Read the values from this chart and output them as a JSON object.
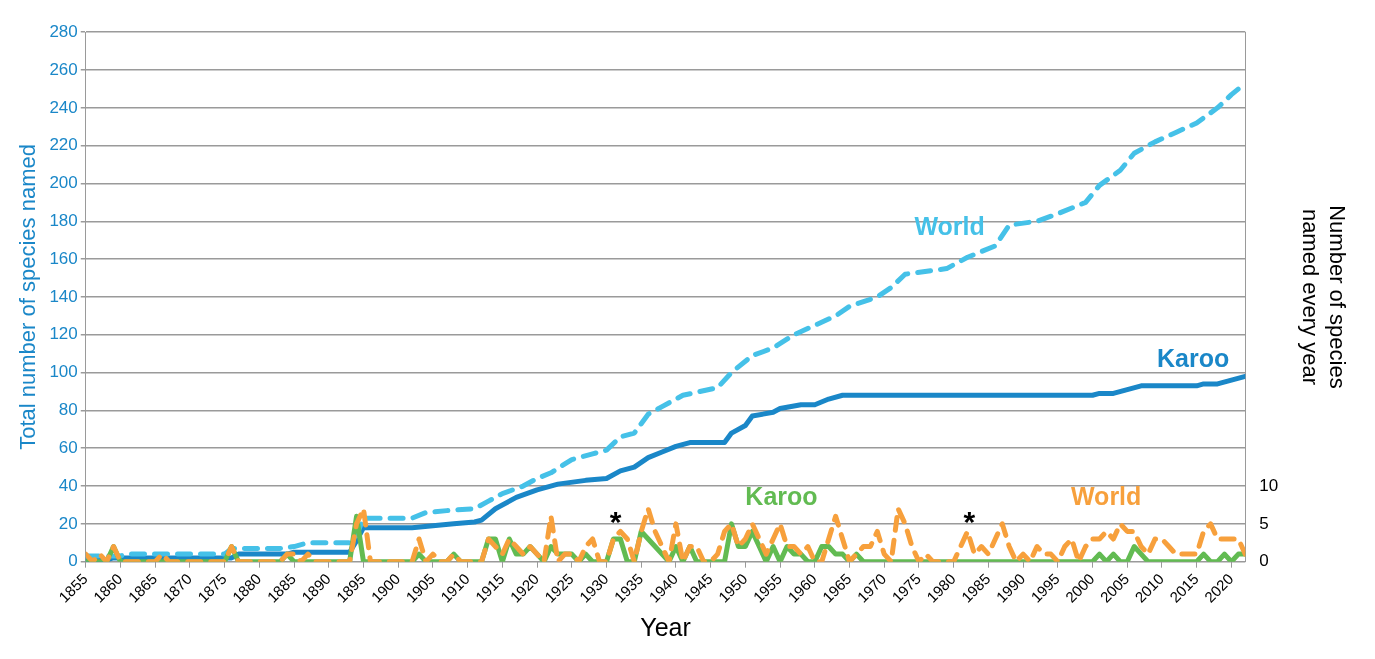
{
  "chart_data": {
    "type": "line",
    "xlabel": "Year",
    "ylabel": "Total number of species named",
    "y2label": "Number of species named every year",
    "xlim": [
      1855,
      2022
    ],
    "xticks": [
      1855,
      1860,
      1865,
      1870,
      1875,
      1880,
      1885,
      1890,
      1895,
      1900,
      1905,
      1910,
      1915,
      1920,
      1925,
      1930,
      1935,
      1940,
      1945,
      1950,
      1955,
      1960,
      1965,
      1970,
      1975,
      1980,
      1985,
      1990,
      1995,
      2000,
      2005,
      2010,
      2015,
      2020
    ],
    "ylim": [
      0,
      280
    ],
    "yticks": [
      0,
      20,
      40,
      60,
      80,
      100,
      120,
      140,
      160,
      180,
      200,
      220,
      240,
      260,
      280
    ],
    "y2lim": [
      0,
      70
    ],
    "y2ticks": [
      0,
      5,
      10
    ],
    "grid": "y",
    "marker": "none",
    "annotations": [
      "*",
      "*"
    ],
    "series": [
      {
        "name": "Karoo",
        "color": "#1a87c8",
        "line_style": "solid",
        "x": [
          1855,
          1858,
          1859,
          1876,
          1877,
          1884,
          1885,
          1893,
          1894,
          1895,
          1902,
          1905,
          1908,
          1911,
          1912,
          1914,
          1917,
          1920,
          1923,
          1927,
          1930,
          1932,
          1934,
          1936,
          1938,
          1940,
          1942,
          1947,
          1948,
          1950,
          1951,
          1954,
          1955,
          1958,
          1960,
          1962,
          1964,
          2000,
          2001,
          2003,
          2005,
          2007,
          2015,
          2016,
          2018,
          2020,
          2022
        ],
        "values": [
          1,
          1,
          2,
          2,
          4,
          4,
          5,
          5,
          11,
          18,
          18,
          19,
          20,
          21,
          22,
          28,
          34,
          38,
          41,
          43,
          44,
          48,
          50,
          55,
          58,
          61,
          63,
          63,
          68,
          72,
          77,
          79,
          81,
          83,
          83,
          86,
          88,
          88,
          89,
          89,
          91,
          93,
          93,
          94,
          94,
          96,
          98
        ]
      },
      {
        "name": "World",
        "color": "#45c1e8",
        "line_style": "dashed",
        "x": [
          1855,
          1860,
          1861,
          1875,
          1876,
          1883,
          1885,
          1887,
          1893,
          1894,
          1895,
          1902,
          1904,
          1907,
          1911,
          1913,
          1915,
          1918,
          1920,
          1922,
          1925,
          1928,
          1930,
          1932,
          1934,
          1936,
          1938,
          1941,
          1946,
          1948,
          1951,
          1954,
          1957,
          1960,
          1963,
          1965,
          1969,
          1971,
          1973,
          1979,
          1982,
          1986,
          1988,
          1992,
          1995,
          1999,
          2001,
          2004,
          2006,
          2009,
          2012,
          2015,
          2018,
          2020,
          2022
        ],
        "values": [
          3,
          3,
          4,
          4,
          7,
          7,
          8,
          10,
          10,
          14,
          23,
          23,
          26,
          27,
          28,
          32,
          36,
          40,
          44,
          47,
          54,
          57,
          59,
          66,
          68,
          78,
          82,
          88,
          92,
          100,
          109,
          113,
          120,
          125,
          130,
          135,
          140,
          145,
          152,
          155,
          161,
          167,
          178,
          180,
          184,
          190,
          199,
          207,
          216,
          222,
          227,
          232,
          240,
          247,
          253
        ]
      },
      {
        "name": "Karoo",
        "color": "#62bb52",
        "line_style": "solid",
        "axis": "y2",
        "x": [
          1855,
          1858,
          1859,
          1860,
          1875,
          1876,
          1877,
          1883,
          1884,
          1885,
          1893,
          1894,
          1895,
          1902,
          1903,
          1904,
          1907,
          1908,
          1909,
          1912,
          1913,
          1914,
          1915,
          1916,
          1917,
          1918,
          1919,
          1920,
          1921,
          1922,
          1923,
          1924,
          1925,
          1926,
          1927,
          1928,
          1930,
          1931,
          1932,
          1933,
          1934,
          1935,
          1936,
          1937,
          1938,
          1939,
          1940,
          1941,
          1942,
          1943,
          1947,
          1948,
          1949,
          1950,
          1951,
          1952,
          1953,
          1954,
          1955,
          1956,
          1957,
          1958,
          1959,
          1960,
          1961,
          1962,
          1963,
          1964,
          1965,
          1966,
          1967,
          2000,
          2001,
          2002,
          2003,
          2004,
          2005,
          2006,
          2007,
          2008,
          2015,
          2016,
          2017,
          2018,
          2019,
          2020,
          2021,
          2022
        ],
        "values": [
          0,
          0,
          2,
          0,
          0,
          2,
          0,
          0,
          1,
          0,
          0,
          6,
          0,
          0,
          1,
          0,
          0,
          1,
          0,
          0,
          3,
          3,
          0,
          3,
          1,
          1,
          2,
          1,
          0,
          2,
          1,
          1,
          1,
          0,
          1,
          0,
          0,
          3,
          3,
          0,
          0,
          4,
          3,
          2,
          1,
          0,
          2,
          0,
          2,
          0,
          0,
          5,
          2,
          2,
          4,
          2,
          0,
          2,
          0,
          2,
          1,
          1,
          0,
          0,
          2,
          2,
          1,
          1,
          0,
          1,
          0,
          0,
          1,
          0,
          1,
          0,
          0,
          2,
          1,
          0,
          0,
          1,
          0,
          0,
          1,
          0,
          1,
          1
        ]
      },
      {
        "name": "World",
        "color": "#f7a03c",
        "line_style": "dashed",
        "axis": "y2",
        "x": [
          1855,
          1856,
          1857,
          1858,
          1859,
          1860,
          1865,
          1866,
          1867,
          1875,
          1876,
          1877,
          1883,
          1884,
          1885,
          1886,
          1887,
          1888,
          1893,
          1894,
          1895,
          1896,
          1902,
          1903,
          1904,
          1905,
          1906,
          1907,
          1908,
          1909,
          1911,
          1912,
          1913,
          1914,
          1915,
          1916,
          1917,
          1918,
          1919,
          1920,
          1921,
          1922,
          1923,
          1924,
          1925,
          1926,
          1927,
          1928,
          1929,
          1930,
          1931,
          1932,
          1933,
          1934,
          1935,
          1936,
          1937,
          1938,
          1939,
          1940,
          1941,
          1942,
          1943,
          1944,
          1945,
          1946,
          1947,
          1948,
          1949,
          1950,
          1951,
          1952,
          1953,
          1954,
          1955,
          1956,
          1957,
          1958,
          1959,
          1960,
          1961,
          1962,
          1963,
          1964,
          1965,
          1966,
          1967,
          1968,
          1969,
          1970,
          1971,
          1972,
          1973,
          1974,
          1975,
          1976,
          1977,
          1978,
          1979,
          1980,
          1981,
          1982,
          1983,
          1984,
          1985,
          1986,
          1987,
          1988,
          1989,
          1990,
          1991,
          1992,
          1993,
          1994,
          1995,
          1996,
          1997,
          1998,
          1999,
          2000,
          2001,
          2002,
          2003,
          2004,
          2005,
          2006,
          2007,
          2008,
          2009,
          2010,
          2011,
          2012,
          2013,
          2014,
          2015,
          2016,
          2017,
          2018,
          2019,
          2020,
          2021,
          2022
        ],
        "values": [
          1,
          0,
          1,
          0,
          2,
          0,
          0,
          1,
          0,
          0,
          2,
          0,
          0,
          1,
          1,
          0,
          1,
          0,
          0,
          5,
          7,
          0,
          0,
          3,
          0,
          1,
          0,
          0,
          1,
          0,
          0,
          0,
          3,
          2,
          1,
          3,
          2,
          1,
          2,
          1,
          0,
          6,
          0,
          1,
          1,
          0,
          2,
          3,
          0,
          0,
          3,
          4,
          3,
          0,
          4,
          7,
          4,
          2,
          0,
          5,
          0,
          2,
          2,
          0,
          0,
          1,
          4,
          5,
          2,
          3,
          5,
          3,
          1,
          3,
          5,
          2,
          2,
          1,
          2,
          0,
          0,
          3,
          6,
          3,
          0,
          1,
          2,
          2,
          4,
          1,
          0,
          7,
          5,
          2,
          0,
          1,
          0,
          0,
          0,
          0,
          2,
          4,
          1,
          2,
          1,
          3,
          5,
          2,
          0,
          1,
          0,
          2,
          1,
          1,
          0,
          2,
          3,
          0,
          2,
          3,
          3,
          4,
          3,
          5,
          4,
          4,
          2,
          1,
          3,
          3,
          2,
          1,
          1,
          1,
          1,
          4,
          5,
          3,
          3,
          3,
          3,
          1
        ]
      }
    ]
  }
}
